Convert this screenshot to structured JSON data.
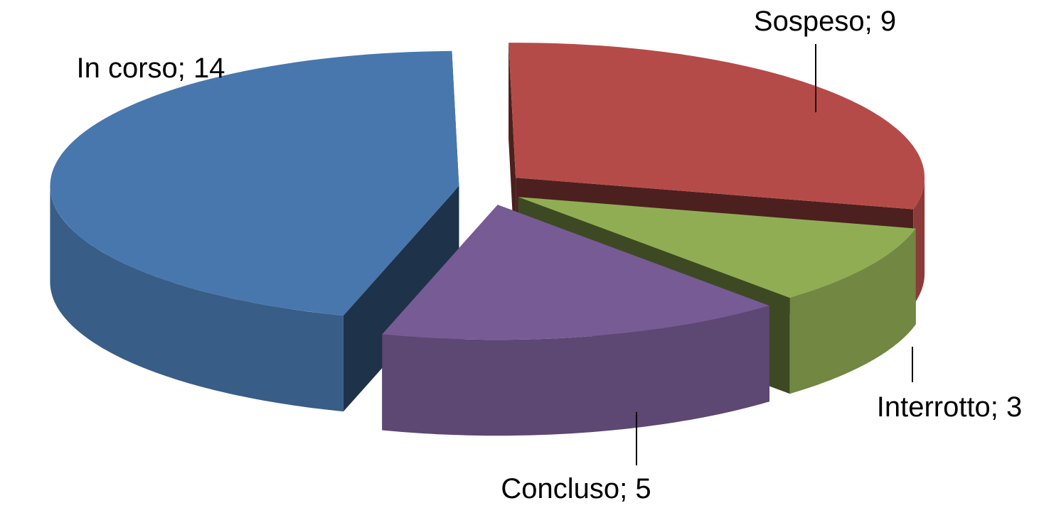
{
  "chart_data": {
    "type": "pie3d",
    "categories": [
      "Sospeso",
      "Interrotto",
      "Concluso",
      "In corso"
    ],
    "values": [
      9,
      3,
      5,
      14
    ],
    "separator": "; ",
    "colors": [
      "#b54b48",
      "#91ad54",
      "#775b94",
      "#4877ad"
    ]
  }
}
